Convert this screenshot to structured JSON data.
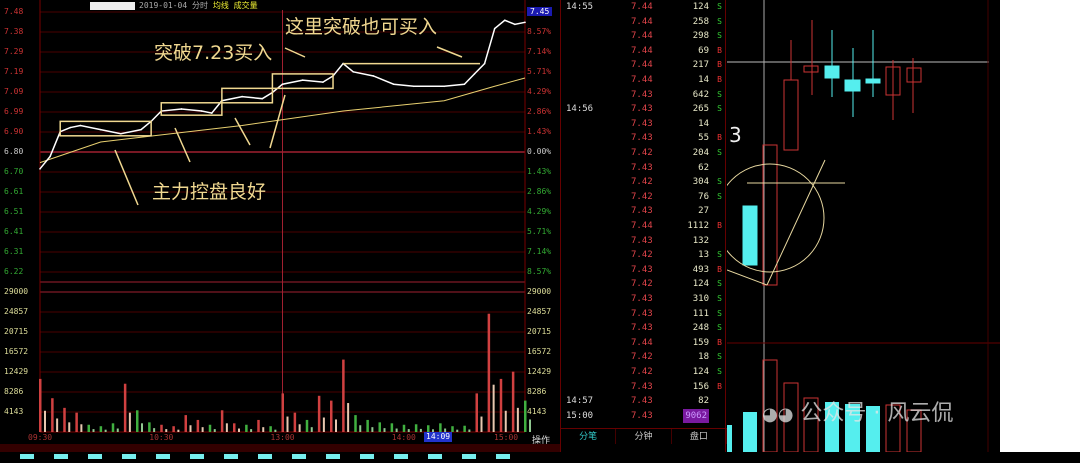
{
  "header": {
    "date": "2019-01-04",
    "mode": "分时",
    "avg_label": "均线",
    "vol_label": "成交量"
  },
  "current_price": "7.45",
  "current_time": "14:09",
  "operate_label": "操作",
  "annotations": [
    "这里突破也可买入",
    "突破7.23买入",
    "主力控盘良好"
  ],
  "colors": {
    "up": "#e33333",
    "down": "#33cc33",
    "price_line": "#ffffff",
    "avg_line": "#e8d070",
    "annotation": "#f0d890",
    "grid": "#5a0000"
  },
  "chart_data": [
    {
      "type": "line",
      "title": "",
      "prev_close": 6.8,
      "y_ticks": [
        "7.48",
        "7.38",
        "7.29",
        "7.19",
        "7.09",
        "6.99",
        "6.90",
        "6.80",
        "6.70",
        "6.61",
        "6.51",
        "6.41",
        "6.31",
        "6.22"
      ],
      "pct_ticks": [
        "9.99%",
        "8.57%",
        "7.14%",
        "5.71%",
        "4.29%",
        "2.86%",
        "1.43%",
        "0.00%",
        "1.43%",
        "2.86%",
        "4.29%",
        "5.71%",
        "7.14%",
        "8.57%"
      ],
      "ylim": [
        6.22,
        7.48
      ],
      "x_ticks": [
        "09:30",
        "10:30",
        "13:00",
        "14:00",
        "15:00"
      ],
      "price": [
        [
          "09:30",
          6.72
        ],
        [
          "09:35",
          6.78
        ],
        [
          "09:40",
          6.9
        ],
        [
          "09:45",
          6.92
        ],
        [
          "09:50",
          6.93
        ],
        [
          "10:00",
          6.91
        ],
        [
          "10:10",
          6.89
        ],
        [
          "10:20",
          6.91
        ],
        [
          "10:25",
          6.95
        ],
        [
          "10:30",
          7.0
        ],
        [
          "10:40",
          7.01
        ],
        [
          "10:50",
          7.0
        ],
        [
          "10:55",
          6.99
        ],
        [
          "11:00",
          7.05
        ],
        [
          "11:10",
          7.07
        ],
        [
          "11:20",
          7.06
        ],
        [
          "11:25",
          7.09
        ],
        [
          "13:00",
          7.13
        ],
        [
          "13:10",
          7.15
        ],
        [
          "13:20",
          7.14
        ],
        [
          "13:25",
          7.17
        ],
        [
          "13:30",
          7.23
        ],
        [
          "13:35",
          7.19
        ],
        [
          "13:45",
          7.17
        ],
        [
          "13:55",
          7.13
        ],
        [
          "14:05",
          7.12
        ],
        [
          "14:20",
          7.12
        ],
        [
          "14:30",
          7.13
        ],
        [
          "14:35",
          7.18
        ],
        [
          "14:40",
          7.23
        ],
        [
          "14:45",
          7.4
        ],
        [
          "14:50",
          7.44
        ],
        [
          "14:55",
          7.42
        ],
        [
          "15:00",
          7.43
        ]
      ],
      "average": [
        [
          "09:30",
          6.75
        ],
        [
          "10:00",
          6.85
        ],
        [
          "11:10",
          6.93
        ],
        [
          "13:30",
          7.0
        ],
        [
          "14:20",
          7.05
        ],
        [
          "14:45",
          7.12
        ],
        [
          "15:00",
          7.16
        ]
      ]
    },
    {
      "type": "bar",
      "title": "",
      "y_ticks": [
        "29000",
        "24857",
        "20715",
        "16572",
        "12429",
        "8286",
        "4143"
      ],
      "ylim": [
        0,
        29000
      ],
      "x": [
        "09:30",
        "09:36",
        "09:42",
        "09:48",
        "09:54",
        "10:00",
        "10:06",
        "10:12",
        "10:18",
        "10:24",
        "10:30",
        "10:36",
        "10:42",
        "10:48",
        "10:54",
        "11:00",
        "11:06",
        "11:12",
        "11:18",
        "11:24",
        "13:00",
        "13:06",
        "13:12",
        "13:18",
        "13:24",
        "13:30",
        "13:36",
        "13:42",
        "13:48",
        "13:54",
        "14:00",
        "14:06",
        "14:12",
        "14:18",
        "14:24",
        "14:30",
        "14:36",
        "14:42",
        "14:48",
        "14:54",
        "15:00"
      ],
      "values": [
        11000,
        7000,
        5000,
        4000,
        1500,
        1200,
        1800,
        10000,
        4500,
        2000,
        1500,
        1200,
        3500,
        2500,
        1500,
        4500,
        1800,
        1500,
        2500,
        1200,
        8000,
        4000,
        2500,
        7500,
        6500,
        15000,
        3500,
        2500,
        2000,
        1800,
        1500,
        1600,
        1400,
        1800,
        1200,
        1300,
        8000,
        24500,
        11000,
        12500,
        6500
      ],
      "direction": [
        "up",
        "up",
        "up",
        "up",
        "down",
        "down",
        "down",
        "up",
        "down",
        "down",
        "up",
        "up",
        "up",
        "up",
        "down",
        "up",
        "up",
        "down",
        "up",
        "down",
        "up",
        "up",
        "down",
        "up",
        "up",
        "up",
        "down",
        "down",
        "down",
        "down",
        "down",
        "down",
        "down",
        "down",
        "down",
        "down",
        "up",
        "up",
        "up",
        "up",
        "down"
      ]
    }
  ],
  "ticks": {
    "rows": [
      {
        "time": "14:55",
        "price": "7.44",
        "vol": "124",
        "flag": "S"
      },
      {
        "time": "",
        "price": "7.44",
        "vol": "258",
        "flag": "S"
      },
      {
        "time": "",
        "price": "7.44",
        "vol": "298",
        "flag": "S"
      },
      {
        "time": "",
        "price": "7.44",
        "vol": "69",
        "flag": "B"
      },
      {
        "time": "",
        "price": "7.44",
        "vol": "217",
        "flag": "B"
      },
      {
        "time": "",
        "price": "7.44",
        "vol": "14",
        "flag": "B"
      },
      {
        "time": "",
        "price": "7.43",
        "vol": "642",
        "flag": "S"
      },
      {
        "time": "14:56",
        "price": "7.43",
        "vol": "265",
        "flag": "S"
      },
      {
        "time": "",
        "price": "7.43",
        "vol": "14",
        "flag": ""
      },
      {
        "time": "",
        "price": "7.43",
        "vol": "55",
        "flag": "B"
      },
      {
        "time": "",
        "price": "7.42",
        "vol": "204",
        "flag": "S"
      },
      {
        "time": "",
        "price": "7.43",
        "vol": "62",
        "flag": ""
      },
      {
        "time": "",
        "price": "7.42",
        "vol": "304",
        "flag": "S"
      },
      {
        "time": "",
        "price": "7.42",
        "vol": "76",
        "flag": "S"
      },
      {
        "time": "",
        "price": "7.43",
        "vol": "27",
        "flag": ""
      },
      {
        "time": "",
        "price": "7.44",
        "vol": "1112",
        "flag": "B"
      },
      {
        "time": "",
        "price": "7.43",
        "vol": "132",
        "flag": ""
      },
      {
        "time": "",
        "price": "7.42",
        "vol": "13",
        "flag": "S"
      },
      {
        "time": "",
        "price": "7.43",
        "vol": "493",
        "flag": "B"
      },
      {
        "time": "",
        "price": "7.42",
        "vol": "124",
        "flag": "S"
      },
      {
        "time": "",
        "price": "7.43",
        "vol": "310",
        "flag": "S"
      },
      {
        "time": "",
        "price": "7.43",
        "vol": "111",
        "flag": "S"
      },
      {
        "time": "",
        "price": "7.43",
        "vol": "248",
        "flag": "S"
      },
      {
        "time": "",
        "price": "7.44",
        "vol": "159",
        "flag": "B"
      },
      {
        "time": "",
        "price": "7.42",
        "vol": "18",
        "flag": "S"
      },
      {
        "time": "",
        "price": "7.42",
        "vol": "124",
        "flag": "S"
      },
      {
        "time": "",
        "price": "7.43",
        "vol": "156",
        "flag": "B"
      },
      {
        "time": "14:57",
        "price": "7.43",
        "vol": "82",
        "flag": ""
      },
      {
        "time": "15:00",
        "price": "7.43",
        "vol": "9062",
        "flag": "",
        "highlight": true
      }
    ],
    "tabs": [
      "分笔",
      "分钟",
      "盘口"
    ]
  },
  "kline": {
    "label": "3"
  },
  "watermark": {
    "prefix": "公众号",
    "name": "风云侃"
  }
}
